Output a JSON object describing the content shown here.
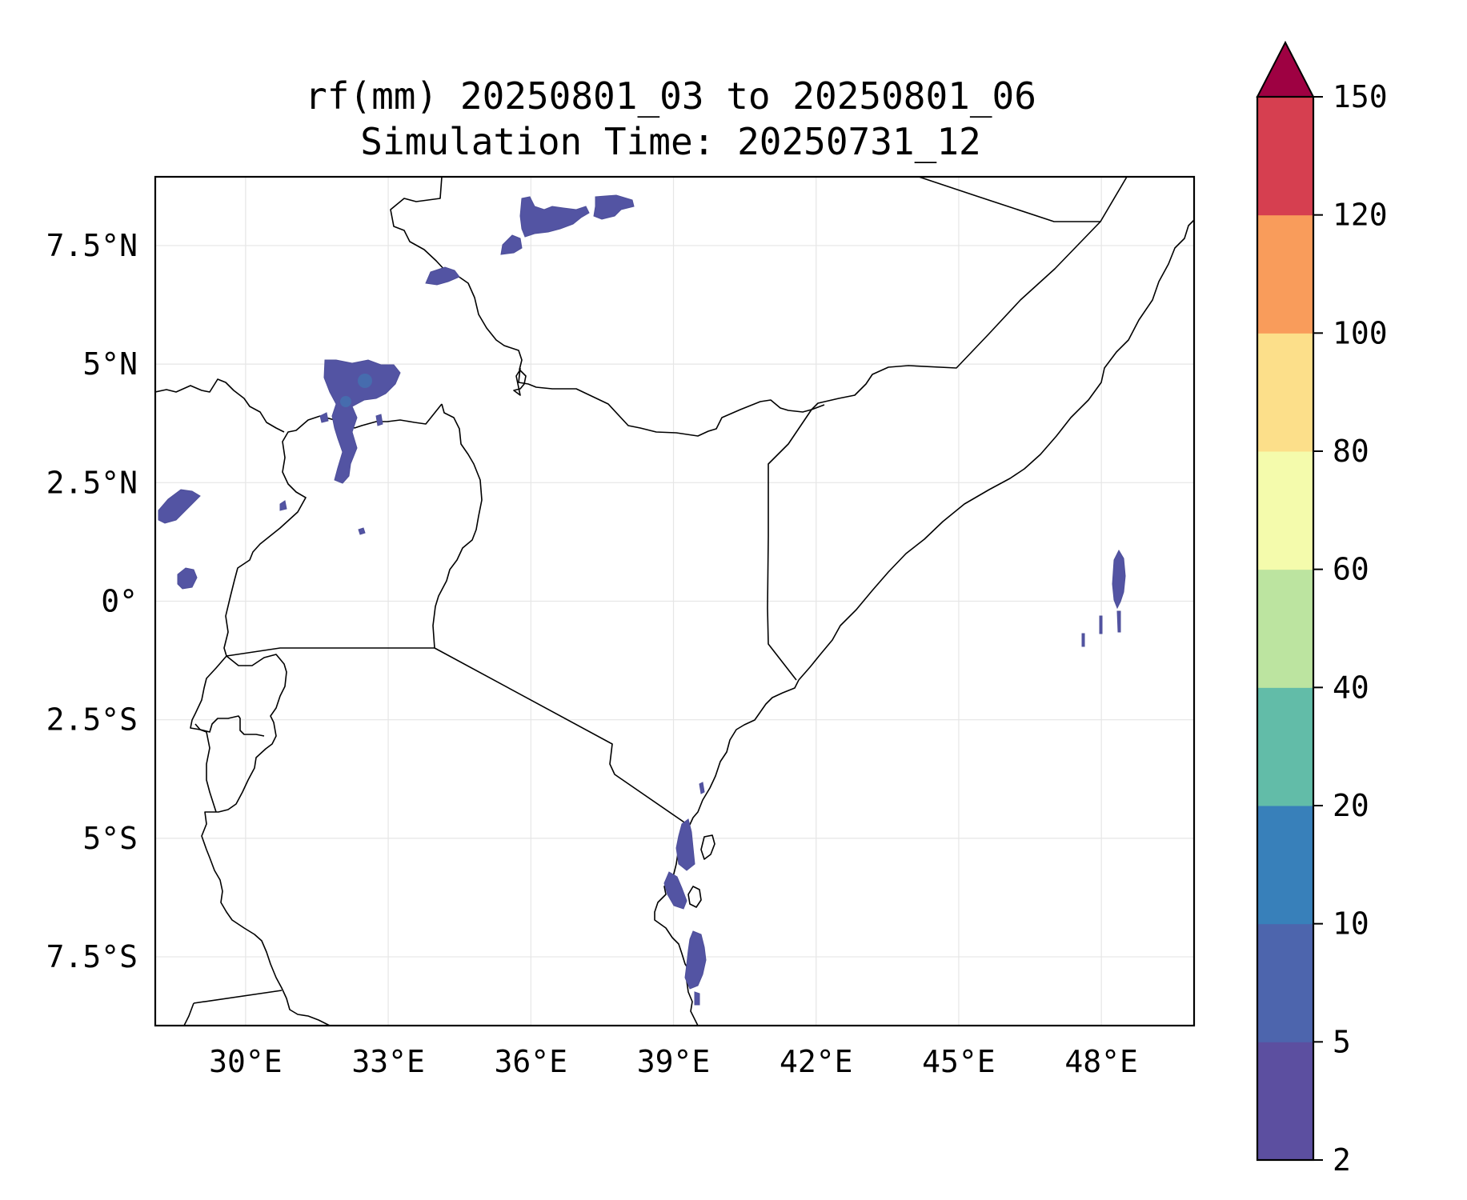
{
  "title": {
    "line1": "rf(mm) 20250801_03 to 20250801_06",
    "line2": "Simulation Time: 20250731_12"
  },
  "map": {
    "extent": {
      "lon_min": 28.1,
      "lon_max": 49.95,
      "lat_min": -8.95,
      "lat_max": 8.95
    },
    "lon_ticks": [
      30,
      33,
      36,
      39,
      42,
      45,
      48
    ],
    "lon_tick_labels": [
      "30°E",
      "33°E",
      "36°E",
      "39°E",
      "42°E",
      "45°E",
      "48°E"
    ],
    "lat_ticks": [
      7.5,
      5,
      2.5,
      0,
      -2.5,
      -5,
      -7.5
    ],
    "lat_tick_labels": [
      "7.5°N",
      "5°N",
      "2.5°N",
      "0°",
      "2.5°S",
      "5°S",
      "7.5°S"
    ],
    "gridlines": true,
    "rain_color": "#5354a3"
  },
  "colorbar": {
    "levels": [
      2,
      5,
      10,
      20,
      40,
      60,
      80,
      100,
      120,
      150
    ],
    "tick_labels": [
      "2",
      "5",
      "10",
      "20",
      "40",
      "60",
      "80",
      "100",
      "120",
      "150"
    ],
    "colors": [
      "#5c4fa0",
      "#4d65ad",
      "#3880ba",
      "#62bca8",
      "#bce4a0",
      "#f4fbac",
      "#fcdf8a",
      "#f99c5b",
      "#d63f50"
    ],
    "extend_color": "#9e0142",
    "extend": "max",
    "orientation": "vertical",
    "placement": "right"
  }
}
